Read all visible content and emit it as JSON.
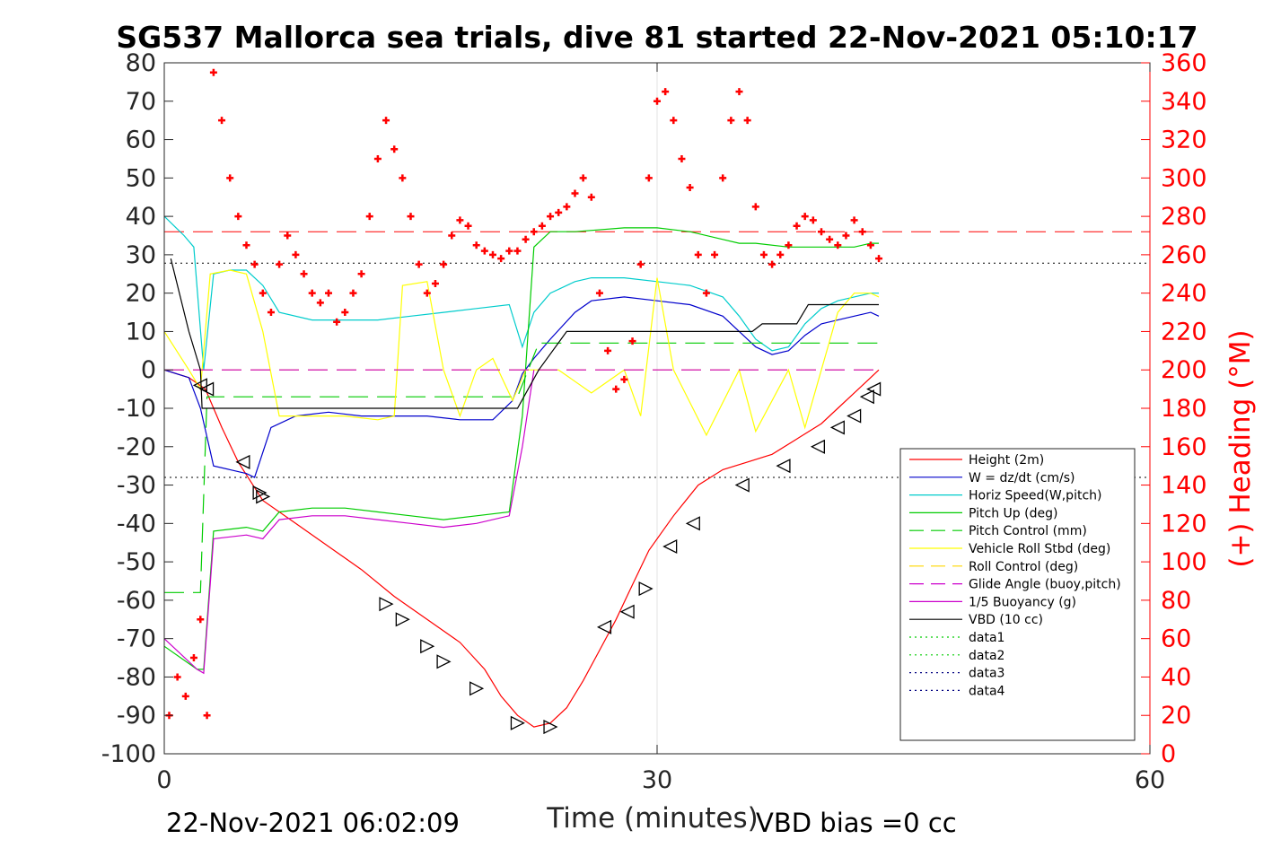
{
  "chart_data": {
    "type": "line",
    "title": "SG537 Mallorca sea trials, dive 81 started 22-Nov-2021 05:10:17",
    "xlabel": "Time (minutes)",
    "ylabel_right": "(+) Heading (°M)",
    "xlim": [
      0,
      60
    ],
    "ylim": [
      -100,
      80
    ],
    "ylim_right": [
      0,
      360
    ],
    "x_ticks": [
      "0",
      "30",
      "60"
    ],
    "y_ticks": [
      "80",
      "70",
      "60",
      "50",
      "40",
      "30",
      "20",
      "10",
      "0",
      "-10",
      "-20",
      "-30",
      "-40",
      "-50",
      "-60",
      "-70",
      "-80",
      "-90",
      "-100"
    ],
    "y_ticks_right": [
      "360",
      "340",
      "320",
      "300",
      "280",
      "260",
      "240",
      "220",
      "200",
      "180",
      "160",
      "140",
      "120",
      "100",
      "80",
      "60",
      "40",
      "20",
      "0"
    ],
    "grid": "x only at 30",
    "legend_position": "bottom-right inside",
    "footer_left": "22-Nov-2021 06:02:09",
    "footer_right": "VBD bias =0 cc",
    "reference_lines": [
      {
        "name": "data1",
        "y": 36,
        "color": "#ff0000",
        "style": "dashed"
      },
      {
        "name": "data3",
        "y": 27.8,
        "color": "#000000",
        "style": "dotted"
      },
      {
        "name": "data4",
        "y": -28,
        "color": "#000000",
        "style": "dotted"
      }
    ],
    "series": [
      {
        "name": "Height (2m)",
        "color": "#ff0000",
        "style": "solid",
        "x": [
          0,
          1.5,
          2.5,
          3.5,
          4.5,
          6,
          8,
          10,
          12,
          14,
          16,
          18,
          19.5,
          20.5,
          21.5,
          22.5,
          23.5,
          24.5,
          25.5,
          26.5,
          27.5,
          28.5,
          29.5,
          31,
          32.5,
          34,
          35.5,
          37,
          38.5,
          40,
          41,
          42,
          43,
          43.5
        ],
        "y": [
          0,
          -2,
          -5,
          -15,
          -24,
          -34,
          -40,
          -46,
          -52,
          -59,
          -65,
          -71,
          -78,
          -85,
          -90,
          -93,
          -92,
          -88,
          -81,
          -73,
          -65,
          -56,
          -47,
          -38,
          -30,
          -26,
          -24,
          -22,
          -18,
          -14,
          -10,
          -6,
          -2,
          0
        ]
      },
      {
        "name": "W = dz/dt (cm/s)",
        "color": "#0000cc",
        "style": "solid",
        "x": [
          0,
          1.5,
          2.2,
          3,
          4,
          5,
          5.5,
          6.5,
          8,
          10,
          12,
          14,
          16,
          18,
          20,
          21.2,
          21.8,
          22.5,
          23.5,
          25,
          26,
          28,
          30,
          32,
          34,
          35,
          36,
          37,
          38,
          39,
          40,
          41,
          42,
          43,
          43.5
        ],
        "y": [
          0,
          -2,
          -10,
          -25,
          -26,
          -27,
          -28,
          -15,
          -12,
          -11,
          -12,
          -12,
          -12,
          -13,
          -13,
          -8,
          -1,
          3,
          8,
          15,
          18,
          19,
          18,
          17,
          14,
          10,
          6,
          4,
          5,
          9,
          12,
          13,
          14,
          15,
          14
        ]
      },
      {
        "name": "Horiz Speed(W,pitch)",
        "color": "#00cccc",
        "style": "solid",
        "x": [
          0,
          1.2,
          1.8,
          2.4,
          3,
          4,
          5,
          6,
          7,
          9,
          11,
          13,
          15,
          17,
          19,
          21,
          21.8,
          22.5,
          23.5,
          25,
          26,
          28,
          30,
          32,
          34,
          35,
          36,
          37,
          38,
          39,
          40,
          41,
          42,
          43,
          43.5
        ],
        "y": [
          40,
          35,
          32,
          0,
          25,
          26,
          26,
          22,
          15,
          13,
          13,
          13,
          14,
          15,
          16,
          17,
          6,
          15,
          20,
          23,
          24,
          24,
          23,
          22,
          19,
          14,
          8,
          5,
          6,
          12,
          16,
          18,
          19,
          20,
          20
        ]
      },
      {
        "name": "Pitch Up (deg)",
        "color": "#00cc00",
        "style": "solid",
        "x": [
          0,
          2,
          2.4,
          3,
          5,
          6,
          7,
          9,
          11,
          13,
          15,
          17,
          19,
          21,
          21.8,
          22.5,
          23.5,
          25,
          28,
          30,
          32,
          34,
          35,
          36,
          38,
          40,
          42,
          43,
          43.5
        ],
        "y": [
          -72,
          -78,
          -78,
          -42,
          -41,
          -42,
          -37,
          -36,
          -36,
          -37,
          -38,
          -39,
          -38,
          -37,
          -12,
          32,
          36,
          36,
          37,
          37,
          36,
          34,
          33,
          33,
          32,
          32,
          32,
          33,
          33
        ]
      },
      {
        "name": "Pitch Control (mm)",
        "color": "#00cc00",
        "style": "dashed",
        "x": [
          0,
          2.2,
          2.6,
          21.5,
          22.8,
          43.5
        ],
        "y": [
          -58,
          -58,
          -7,
          -7,
          7,
          7
        ]
      },
      {
        "name": "Vehicle Roll Stbd (deg)",
        "color": "#ffff00",
        "style": "solid",
        "x": [
          0,
          1.5,
          2.2,
          2.8,
          4,
          5,
          6,
          7,
          9,
          11,
          13,
          14,
          14.5,
          16,
          17,
          18,
          19,
          20,
          21.2,
          22,
          24,
          26,
          28,
          29,
          30,
          31,
          33,
          35,
          36,
          38,
          39,
          40,
          41,
          42,
          43,
          43.5
        ],
        "y": [
          10,
          0,
          -5,
          25,
          26,
          25,
          10,
          -12,
          -12,
          -12,
          -13,
          -12,
          22,
          23,
          0,
          -12,
          0,
          3,
          -8,
          0,
          0,
          -6,
          0,
          -12,
          24,
          0,
          -17,
          0,
          -16,
          0,
          -15,
          0,
          15,
          20,
          20,
          19
        ]
      },
      {
        "name": "Roll Control (deg)",
        "color": "#ffd700",
        "style": "dashed",
        "x": [
          0,
          2.2,
          2.6,
          43.5
        ],
        "y": [
          0,
          0,
          0,
          0
        ]
      },
      {
        "name": "Glide Angle (buoy,pitch)",
        "color": "#cc00cc",
        "style": "dashed",
        "x": [
          0,
          2.2,
          2.6,
          21.5,
          22.8,
          43.5
        ],
        "y": [
          0,
          0,
          0,
          0,
          0,
          0
        ]
      },
      {
        "name": "1/5 Buoyancy (g)",
        "color": "#cc00cc",
        "style": "solid",
        "x": [
          0,
          2,
          2.4,
          3,
          5,
          6,
          7,
          9,
          11,
          13,
          15,
          17,
          19,
          21,
          21.8,
          22.5
        ],
        "y": [
          -70,
          -78,
          -79,
          -44,
          -43,
          -44,
          -39,
          -38,
          -38,
          -39,
          -40,
          -41,
          -40,
          -38,
          -20,
          0
        ]
      },
      {
        "name": "VBD (10 cc)",
        "color": "#000000",
        "style": "solid",
        "x": [
          0.4,
          1.5,
          2.2,
          2.3,
          21.5,
          22.8,
          24.5,
          35.8,
          36.4,
          37.5,
          37.8,
          38.5,
          39.2,
          43.5
        ],
        "y": [
          29,
          10,
          0,
          -10,
          -10,
          0,
          10,
          10,
          12,
          12,
          12,
          12,
          17,
          17
        ]
      },
      {
        "name": "data1",
        "color": "#00cc00",
        "style": "dotted",
        "x": [],
        "y": []
      },
      {
        "name": "data2",
        "color": "#00cc00",
        "style": "dotted",
        "x": [],
        "y": []
      },
      {
        "name": "data3",
        "color": "#000080",
        "style": "dotted",
        "x": [],
        "y": []
      },
      {
        "name": "data4",
        "color": "#000080",
        "style": "dotted",
        "x": [],
        "y": []
      }
    ],
    "heading_series": {
      "axis": "right",
      "color": "#ff0000",
      "marker": "+",
      "x": [
        0.3,
        0.8,
        1.3,
        1.8,
        2.2,
        2.6,
        3,
        3.5,
        4,
        4.5,
        5,
        5.5,
        6,
        6.5,
        7,
        7.5,
        8,
        8.5,
        9,
        9.5,
        10,
        10.5,
        11,
        11.5,
        12,
        12.5,
        13,
        13.5,
        14,
        14.5,
        15,
        15.5,
        16,
        16.5,
        17,
        17.5,
        18,
        18.5,
        19,
        19.5,
        20,
        20.5,
        21,
        21.5,
        22,
        22.5,
        23,
        23.5,
        24,
        24.5,
        25,
        25.5,
        26,
        26.5,
        27,
        27.5,
        28,
        28.5,
        29,
        29.5,
        30,
        30.5,
        31,
        31.5,
        32,
        32.5,
        33,
        33.5,
        34,
        34.5,
        35,
        35.5,
        36,
        36.5,
        37,
        37.5,
        38,
        38.5,
        39,
        39.5,
        40,
        40.5,
        41,
        41.5,
        42,
        42.5,
        43,
        43.5
      ],
      "y": [
        20,
        40,
        30,
        50,
        70,
        20,
        355,
        330,
        300,
        280,
        265,
        255,
        240,
        230,
        255,
        270,
        260,
        250,
        240,
        235,
        240,
        225,
        230,
        240,
        250,
        280,
        310,
        330,
        315,
        300,
        280,
        255,
        240,
        245,
        255,
        270,
        278,
        275,
        265,
        262,
        260,
        258,
        262,
        262,
        268,
        272,
        275,
        280,
        282,
        285,
        292,
        300,
        290,
        240,
        210,
        190,
        195,
        215,
        255,
        300,
        340,
        345,
        330,
        310,
        295,
        260,
        240,
        260,
        300,
        330,
        345,
        330,
        285,
        260,
        255,
        260,
        265,
        275,
        280,
        278,
        272,
        268,
        265,
        270,
        278,
        272,
        265,
        258
      ]
    },
    "depth_markers": {
      "shape": "triangle",
      "points": [
        {
          "x": 2.2,
          "y": -4,
          "dir": "left"
        },
        {
          "x": 2.6,
          "y": -5,
          "dir": "left"
        },
        {
          "x": 4.8,
          "y": -24,
          "dir": "left"
        },
        {
          "x": 5.8,
          "y": -32,
          "dir": "right"
        },
        {
          "x": 6.0,
          "y": -33,
          "dir": "right"
        },
        {
          "x": 13.5,
          "y": -61,
          "dir": "right"
        },
        {
          "x": 14.5,
          "y": -65,
          "dir": "right"
        },
        {
          "x": 16.0,
          "y": -72,
          "dir": "right"
        },
        {
          "x": 17.0,
          "y": -76,
          "dir": "right"
        },
        {
          "x": 19.0,
          "y": -83,
          "dir": "right"
        },
        {
          "x": 21.5,
          "y": -92,
          "dir": "right"
        },
        {
          "x": 23.5,
          "y": -93,
          "dir": "right"
        },
        {
          "x": 26.8,
          "y": -67,
          "dir": "left"
        },
        {
          "x": 28.2,
          "y": -63,
          "dir": "left"
        },
        {
          "x": 29.3,
          "y": -57,
          "dir": "right"
        },
        {
          "x": 30.8,
          "y": -46,
          "dir": "left"
        },
        {
          "x": 32.2,
          "y": -40,
          "dir": "left"
        },
        {
          "x": 35.2,
          "y": -30,
          "dir": "left"
        },
        {
          "x": 37.7,
          "y": -25,
          "dir": "left"
        },
        {
          "x": 39.8,
          "y": -20,
          "dir": "left"
        },
        {
          "x": 41.0,
          "y": -15,
          "dir": "left"
        },
        {
          "x": 42.0,
          "y": -12,
          "dir": "left"
        },
        {
          "x": 42.8,
          "y": -7,
          "dir": "left"
        },
        {
          "x": 43.2,
          "y": -5,
          "dir": "left"
        }
      ]
    }
  }
}
